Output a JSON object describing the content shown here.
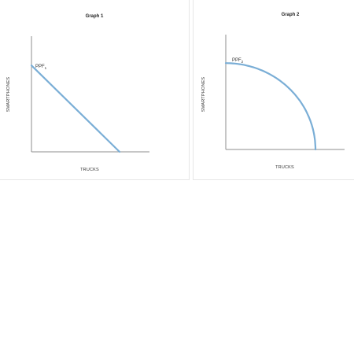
{
  "colors": {
    "curve": "#7aaed6",
    "axis": "#8c8c8c"
  },
  "chart_data": [
    {
      "type": "line",
      "title": "Graph 1",
      "xlabel": "TRUCKS",
      "ylabel": "SMARTPHONES",
      "grid": false,
      "xlim": [
        0,
        10
      ],
      "ylim": [
        0,
        10
      ],
      "series": [
        {
          "name": "PPF",
          "subscript": "1",
          "shape": "straight line",
          "x": [
            0,
            10
          ],
          "y": [
            9.8,
            0
          ]
        }
      ]
    },
    {
      "type": "line",
      "title": "Graph 2",
      "xlabel": "TRUCKS",
      "ylabel": "SMARTPHONES",
      "grid": false,
      "xlim": [
        0,
        10
      ],
      "ylim": [
        0,
        10
      ],
      "series": [
        {
          "name": "PPF",
          "subscript": "2",
          "shape": "concave (bowed outward)",
          "x": [
            0,
            10
          ],
          "y": [
            9.8,
            0
          ]
        }
      ]
    }
  ]
}
